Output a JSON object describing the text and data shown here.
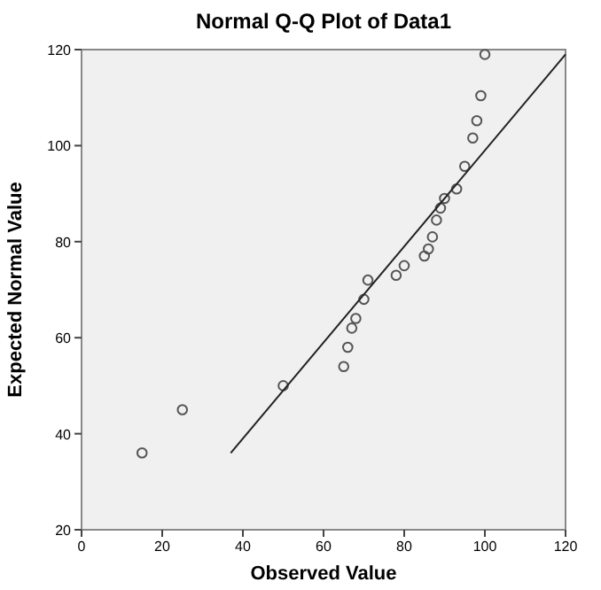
{
  "chart_data": {
    "type": "scatter",
    "title": "Normal Q-Q Plot of Data1",
    "xlabel": "Observed Value",
    "ylabel": "Expected Normal Value",
    "xlim": [
      0,
      120
    ],
    "ylim": [
      20,
      120
    ],
    "xticks": [
      0,
      20,
      40,
      60,
      80,
      100,
      120
    ],
    "yticks": [
      20,
      40,
      60,
      80,
      100,
      120
    ],
    "grid": false,
    "series": [
      {
        "marker": "circle",
        "color": "#555555",
        "x": [
          15,
          25,
          50,
          65,
          66,
          67,
          68,
          70,
          71,
          78,
          80,
          85,
          86,
          87,
          88,
          89,
          90,
          93,
          95,
          97,
          98,
          99,
          100
        ],
        "values": [
          36,
          45,
          50,
          54,
          58,
          62,
          64,
          68,
          72,
          73,
          75,
          77,
          78.5,
          81,
          84.5,
          87,
          89,
          91,
          95.7,
          101.6,
          105.2,
          110.4,
          119
        ]
      },
      {
        "type": "line",
        "marker": "none",
        "color": "#222222",
        "x": [
          37,
          120
        ],
        "values": [
          36,
          119
        ]
      }
    ]
  }
}
